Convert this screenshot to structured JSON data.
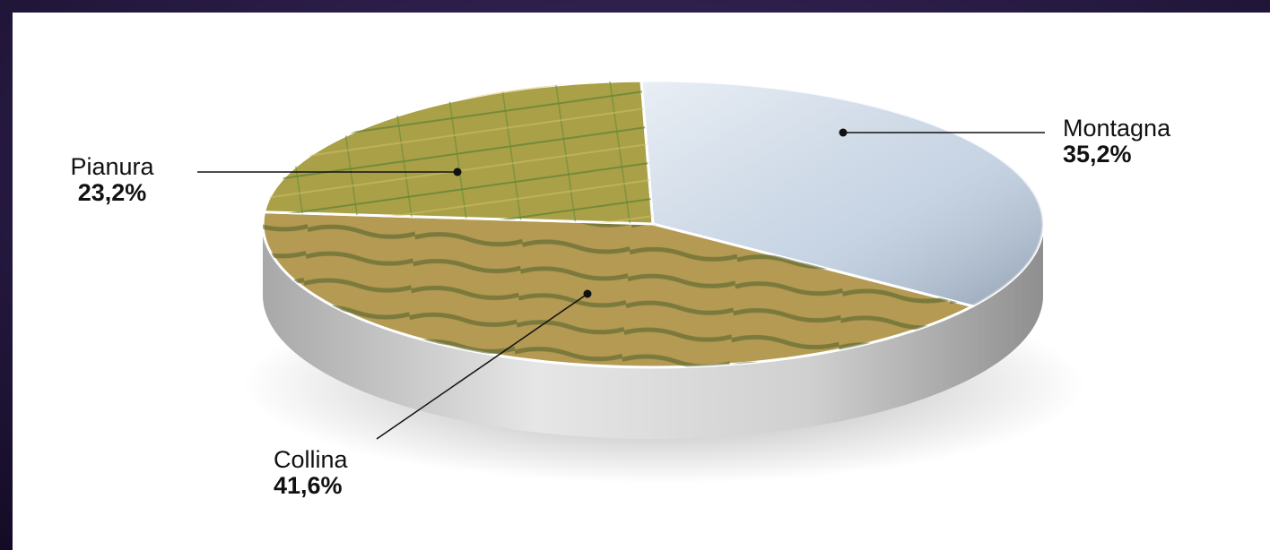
{
  "chart_data": {
    "type": "pie",
    "categories": [
      "Montagna",
      "Collina",
      "Pianura"
    ],
    "values": [
      35.2,
      41.6,
      23.2
    ],
    "value_labels": [
      "35,2%",
      "41,6%",
      "23,2%"
    ],
    "colors": [
      "#b9c9dc",
      "#b49a52",
      "#a9a048"
    ]
  }
}
